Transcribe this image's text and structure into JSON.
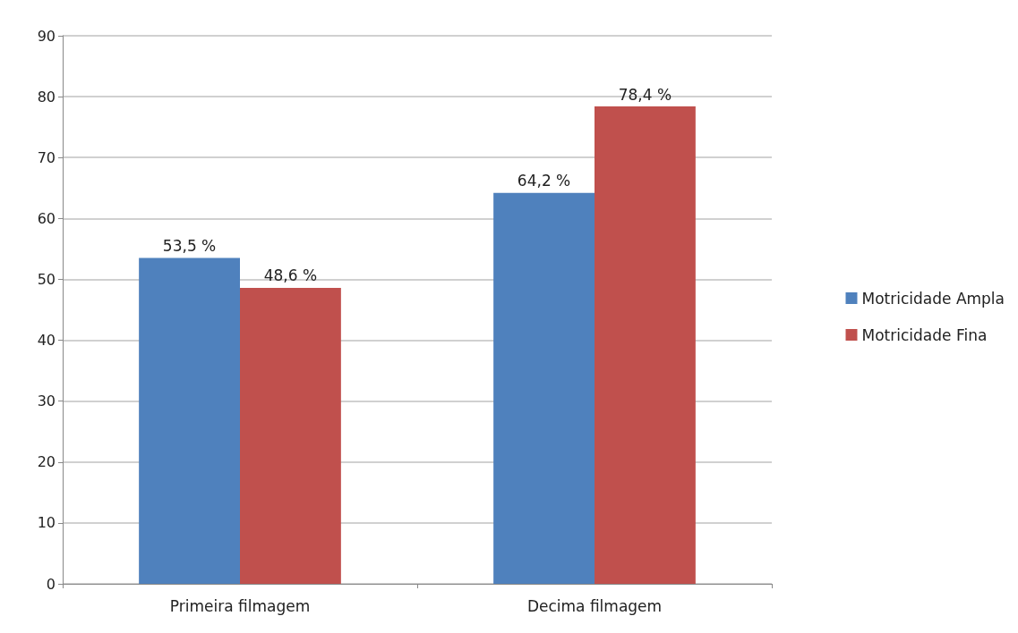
{
  "chart_data": {
    "type": "bar",
    "categories": [
      "Primeira filmagem",
      "Decima filmagem"
    ],
    "series": [
      {
        "name": "Motricidade Ampla",
        "color": "#4f81bd",
        "values": [
          53.5,
          64.2
        ],
        "value_labels": [
          "53,5 %",
          "64,2 %"
        ]
      },
      {
        "name": "Motricidade Fina",
        "color": "#c0504d",
        "values": [
          48.6,
          78.4
        ],
        "value_labels": [
          "48,6 %",
          "78,4 %"
        ]
      }
    ],
    "ylim": [
      0,
      90
    ],
    "yticks": [
      0,
      10,
      20,
      30,
      40,
      50,
      60,
      70,
      80,
      90
    ],
    "grid": "y",
    "legend": "right"
  }
}
